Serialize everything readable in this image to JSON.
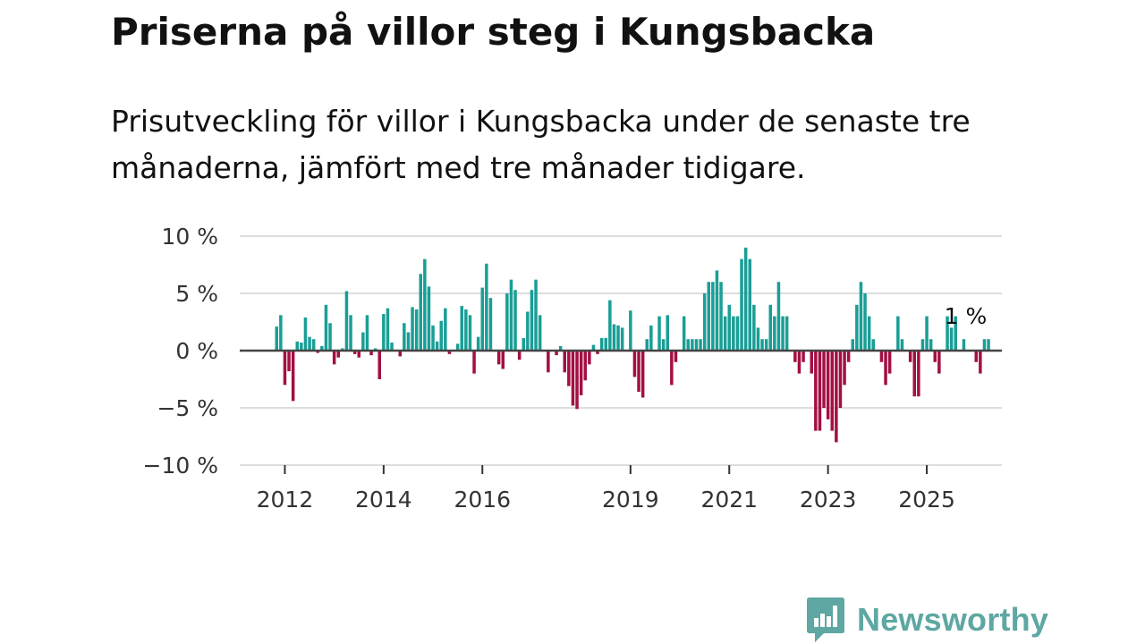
{
  "title": "Priserna på villor steg i Kungsbacka",
  "subtitle": "Prisutveckling för villor i Kungsbacka under de senaste tre månaderna, jämfört med tre månader tidigare.",
  "logo": {
    "text": "Newsworthy",
    "icon": "bar-chart-speech-bubble-icon"
  },
  "colors": {
    "positive": "#1a9e96",
    "negative": "#a30f44",
    "grid": "#dddddd",
    "zero_line": "#444444",
    "brand": "#5ea7a2"
  },
  "chart_data": {
    "type": "bar",
    "title": "Priserna på villor steg i Kungsbacka",
    "xlabel": "",
    "ylabel": "",
    "ylim": [
      -10,
      10
    ],
    "y_ticks": [
      10,
      5,
      0,
      -5,
      -10
    ],
    "y_tick_labels": [
      "10 %",
      "5 %",
      "0 %",
      "−5 %",
      "−10 %"
    ],
    "x_ticks": [
      {
        "label": "2012",
        "index": 2
      },
      {
        "label": "2014",
        "index": 26
      },
      {
        "label": "2016",
        "index": 50
      },
      {
        "label": "2019",
        "index": 86
      },
      {
        "label": "2021",
        "index": 110
      },
      {
        "label": "2023",
        "index": 134
      },
      {
        "label": "2025",
        "index": 158
      }
    ],
    "grid": true,
    "annotation": {
      "text": "1 %",
      "index": 167
    },
    "start": "2011-11",
    "end": "2025-10",
    "series": [
      {
        "name": "Prisutveckling",
        "values": [
          2.1,
          3.1,
          -3.0,
          -1.8,
          -4.4,
          0.8,
          0.7,
          2.9,
          1.2,
          1.0,
          -0.2,
          0.4,
          4.0,
          2.4,
          -1.2,
          -0.6,
          0.2,
          5.2,
          3.1,
          -0.3,
          -0.6,
          1.6,
          3.1,
          -0.4,
          0.2,
          -2.5,
          3.2,
          3.7,
          0.7,
          0,
          -0.5,
          2.4,
          1.6,
          3.8,
          3.6,
          6.7,
          8.0,
          5.6,
          2.2,
          0.8,
          2.6,
          3.7,
          -0.3,
          0,
          0.6,
          3.9,
          3.6,
          3.1,
          -2.0,
          1.2,
          5.5,
          7.6,
          4.6,
          0,
          -1.2,
          -1.6,
          5.0,
          6.2,
          5.3,
          -0.8,
          1.1,
          3.4,
          5.3,
          6.2,
          3.1,
          0,
          -1.9,
          0,
          -0.4,
          0.4,
          -1.9,
          -3.1,
          -4.8,
          -5.1,
          -3.9,
          -2.6,
          -1.2,
          0.5,
          -0.3,
          1.1,
          1.1,
          4.4,
          2.3,
          2.2,
          2.0,
          0,
          3.5,
          -2.3,
          -3.6,
          -4.1,
          1.0,
          2.2,
          0,
          3.0,
          1.0,
          3.1,
          -3.0,
          -1.0,
          0,
          3.0,
          1.0,
          1.0,
          1.0,
          1.0,
          5.0,
          6.0,
          6.0,
          7.0,
          6.0,
          3.0,
          4.0,
          3.0,
          3.0,
          8.0,
          9.0,
          8.0,
          4.0,
          2.0,
          1.0,
          1.0,
          4.0,
          3.0,
          6.0,
          3.0,
          3.0,
          0,
          -1.0,
          -2.0,
          -1.0,
          0,
          -2.0,
          -7.0,
          -7.0,
          -5.0,
          -6.0,
          -7.0,
          -8.0,
          -5.0,
          -3.0,
          -1.0,
          1.0,
          4.0,
          6.0,
          5.0,
          3.0,
          1.0,
          0,
          -1.0,
          -3.0,
          -2.0,
          0,
          3.0,
          1.0,
          0,
          -1.0,
          -4.0,
          -4.0,
          1.0,
          3.0,
          1.0,
          -1.0,
          -2.0,
          0,
          3.0,
          2.0,
          3.0,
          0,
          1.0,
          0,
          0,
          -1.0,
          -2.0,
          1.0,
          1.0
        ]
      }
    ]
  }
}
